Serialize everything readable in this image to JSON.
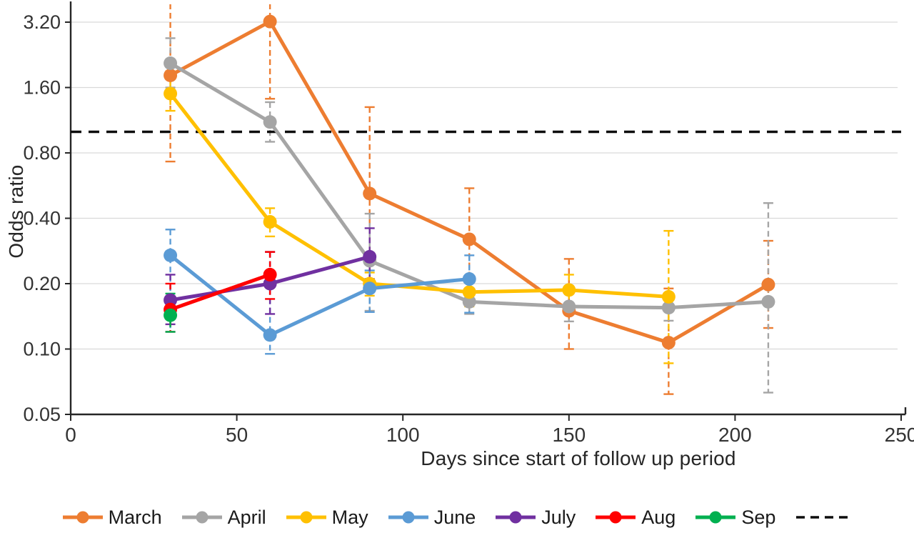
{
  "figure": {
    "y_axis_title": "Odds ratio",
    "x_axis_title": "Days since start of follow up period",
    "background_color": "#ffffff",
    "gridline_color": "#d9d9d9",
    "axis_color": "#262626",
    "tick_label_color": "#333333"
  },
  "chart_data": {
    "type": "line",
    "title": "",
    "xlabel": "Days since start of follow up period",
    "ylabel": "Odds ratio",
    "y_scale": "log2",
    "xlim": [
      0,
      250
    ],
    "ylim": [
      0.05,
      3.9
    ],
    "x_ticks": [
      0,
      50,
      100,
      150,
      200,
      250
    ],
    "y_ticks": [
      3.2,
      1.6,
      0.8,
      0.4,
      0.2,
      0.1,
      0.05
    ],
    "y_tick_labels": [
      "3.20",
      "1.60",
      "0.80",
      "0.40",
      "0.20",
      "0.10",
      "0.05"
    ],
    "grid": "horizontal",
    "legend_position": "bottom",
    "error_bars": "dashed, colored per series, with caps",
    "reference_line": {
      "value": 1.0,
      "style": "dashed",
      "color": "#0d0d0d",
      "label": ""
    },
    "series": [
      {
        "name": "March",
        "color": "#ED7D31",
        "points": [
          {
            "x": 30,
            "y": 1.82,
            "lo": 0.73,
            "hi": 4.3,
            "hi_clipped": true
          },
          {
            "x": 60,
            "y": 3.22,
            "lo": 1.42,
            "hi": 4.3,
            "hi_clipped": true
          },
          {
            "x": 90,
            "y": 0.52,
            "lo": 0.21,
            "hi": 1.3
          },
          {
            "x": 120,
            "y": 0.32,
            "lo": 0.19,
            "hi": 0.55
          },
          {
            "x": 150,
            "y": 0.15,
            "lo": 0.1,
            "hi": 0.26
          },
          {
            "x": 180,
            "y": 0.107,
            "lo": 0.062,
            "hi": 0.19
          },
          {
            "x": 210,
            "y": 0.198,
            "lo": 0.125,
            "hi": 0.315
          }
        ]
      },
      {
        "name": "April",
        "color": "#A5A5A5",
        "points": [
          {
            "x": 30,
            "y": 2.07,
            "lo": 1.6,
            "hi": 2.7
          },
          {
            "x": 60,
            "y": 1.11,
            "lo": 0.9,
            "hi": 1.37
          },
          {
            "x": 90,
            "y": 0.255,
            "lo": 0.15,
            "hi": 0.42
          },
          {
            "x": 120,
            "y": 0.165,
            "lo": 0.145,
            "hi": 0.19
          },
          {
            "x": 150,
            "y": 0.157,
            "lo": 0.134,
            "hi": 0.185
          },
          {
            "x": 180,
            "y": 0.155,
            "lo": 0.135,
            "hi": 0.18
          },
          {
            "x": 210,
            "y": 0.165,
            "lo": 0.063,
            "hi": 0.47
          }
        ]
      },
      {
        "name": "May",
        "color": "#FFC000",
        "points": [
          {
            "x": 30,
            "y": 1.5,
            "lo": 1.25,
            "hi": 1.9
          },
          {
            "x": 60,
            "y": 0.385,
            "lo": 0.33,
            "hi": 0.445
          },
          {
            "x": 90,
            "y": 0.2,
            "lo": 0.176,
            "hi": 0.225
          },
          {
            "x": 120,
            "y": 0.183,
            "lo": 0.157,
            "hi": 0.215
          },
          {
            "x": 150,
            "y": 0.187,
            "lo": 0.155,
            "hi": 0.22
          },
          {
            "x": 180,
            "y": 0.174,
            "lo": 0.086,
            "hi": 0.35
          }
        ]
      },
      {
        "name": "June",
        "color": "#5B9BD5",
        "points": [
          {
            "x": 30,
            "y": 0.27,
            "lo": 0.12,
            "hi": 0.355
          },
          {
            "x": 60,
            "y": 0.116,
            "lo": 0.095,
            "hi": 0.28
          },
          {
            "x": 90,
            "y": 0.19,
            "lo": 0.148,
            "hi": 0.23
          },
          {
            "x": 120,
            "y": 0.21,
            "lo": 0.147,
            "hi": 0.27
          }
        ]
      },
      {
        "name": "July",
        "color": "#7030A0",
        "points": [
          {
            "x": 30,
            "y": 0.168,
            "lo": 0.13,
            "hi": 0.22
          },
          {
            "x": 60,
            "y": 0.2,
            "lo": 0.145,
            "hi": 0.28
          },
          {
            "x": 90,
            "y": 0.266,
            "lo": 0.21,
            "hi": 0.36
          }
        ]
      },
      {
        "name": "Aug",
        "color": "#FF0000",
        "points": [
          {
            "x": 30,
            "y": 0.152,
            "lo": 0.12,
            "hi": 0.2
          },
          {
            "x": 60,
            "y": 0.22,
            "lo": 0.17,
            "hi": 0.28
          }
        ]
      },
      {
        "name": "Sep",
        "color": "#00B050",
        "points": [
          {
            "x": 30,
            "y": 0.143,
            "lo": 0.12,
            "hi": 0.18
          }
        ]
      }
    ],
    "legend_extra_dashed_entry": {
      "label": "",
      "color": "#0d0d0d"
    }
  }
}
